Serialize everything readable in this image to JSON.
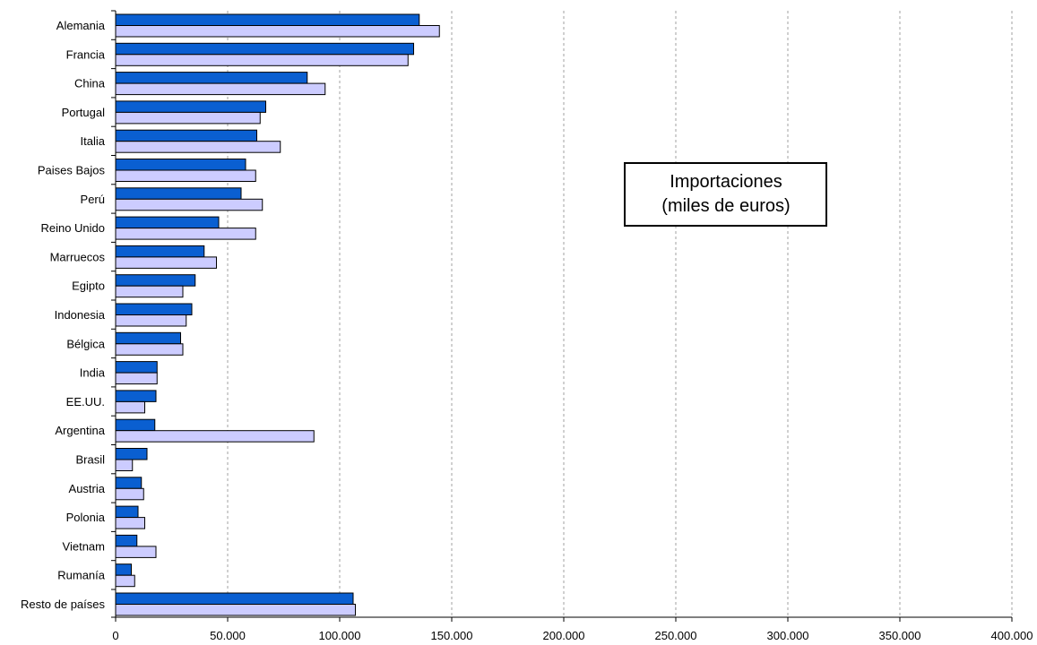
{
  "chart_data": {
    "type": "bar",
    "orientation": "horizontal",
    "categories": [
      "Alemania",
      "Francia",
      "China",
      "Portugal",
      "Italia",
      "Paises Bajos",
      "Perú",
      "Reino Unido",
      "Marruecos",
      "Egipto",
      "Indonesia",
      "Bélgica",
      "India",
      "EE.UU.",
      "Argentina",
      "Brasil",
      "Austria",
      "Polonia",
      "Vietnam",
      "Rumanía",
      "Resto de países"
    ],
    "series": [
      {
        "color": "#0a5fd1",
        "values": [
          135500,
          133000,
          85500,
          67000,
          63000,
          58000,
          56000,
          46000,
          39500,
          35500,
          34000,
          29000,
          18500,
          18000,
          17500,
          14000,
          11500,
          10000,
          9500,
          7000,
          106000
        ]
      },
      {
        "color": "#ccccff",
        "values": [
          144500,
          130500,
          93500,
          64500,
          73500,
          62500,
          65500,
          62500,
          45000,
          30000,
          31500,
          30000,
          18500,
          13000,
          88500,
          7500,
          12500,
          13000,
          18000,
          8500,
          107000
        ]
      }
    ],
    "xlim": [
      0,
      400000
    ],
    "xticks": [
      0,
      50000,
      100000,
      150000,
      200000,
      250000,
      300000,
      350000,
      400000
    ],
    "xtick_labels": [
      "0",
      "50.000",
      "100.000",
      "150.000",
      "200.000",
      "250.000",
      "300.000",
      "350.000",
      "400.000"
    ],
    "grid": "vertical-dashed",
    "annotation": [
      "Importaciones",
      "(miles de euros)"
    ]
  }
}
